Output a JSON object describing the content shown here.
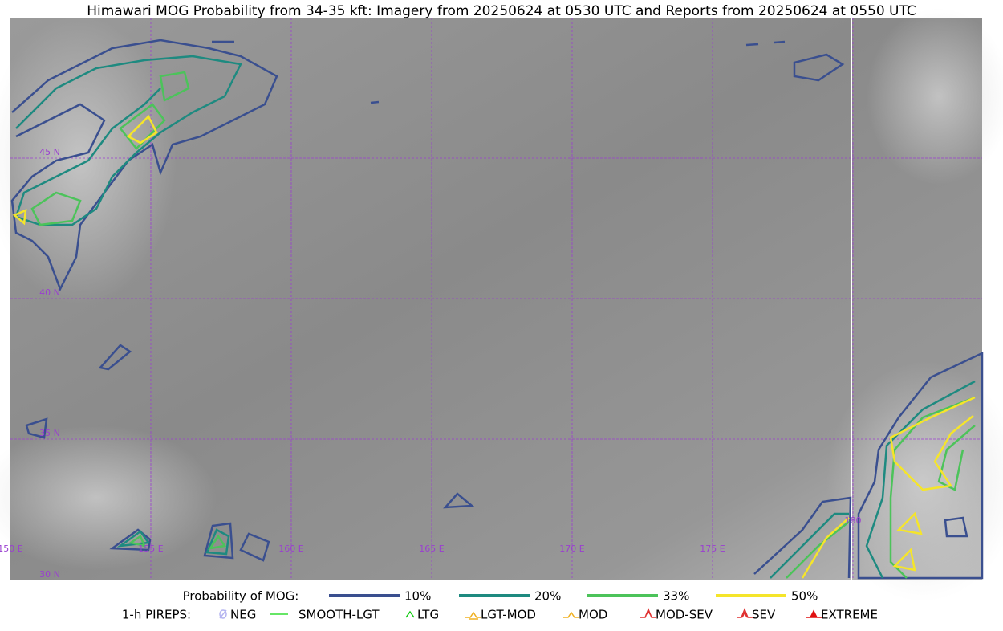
{
  "title": "Himawari MOG Probability from 34-35 kft: Imagery from 20250624 at 0530 UTC and Reports from 20250624 at 0550 UTC",
  "map": {
    "lat_labels": [
      "45 N",
      "40 N",
      "35 N",
      "30 N"
    ],
    "lon_labels": [
      "150 E",
      "155 E",
      "160 E",
      "165 E",
      "170 E",
      "175 E",
      "180"
    ]
  },
  "legend": {
    "probability": {
      "title": "Probability of MOG:",
      "items": [
        {
          "label": "10%",
          "color": "#3a4f8f"
        },
        {
          "label": "20%",
          "color": "#1e8a80"
        },
        {
          "label": "33%",
          "color": "#4cc35a"
        },
        {
          "label": "50%",
          "color": "#f5e52a"
        }
      ]
    },
    "pireps": {
      "title": "1-h PIREPS:",
      "items": [
        {
          "label": "NEG",
          "color": "#b4b4f0"
        },
        {
          "label": "SMOOTH-LGT",
          "color": "#33dd33"
        },
        {
          "label": "LTG",
          "color": "#11cc11"
        },
        {
          "label": "LGT-MOD",
          "color": "#f0b020"
        },
        {
          "label": "MOD",
          "color": "#f0b020"
        },
        {
          "label": "MOD-SEV",
          "color": "#e03030"
        },
        {
          "label": "SEV",
          "color": "#e03030"
        },
        {
          "label": "EXTREME",
          "color": "#e01010"
        }
      ]
    }
  }
}
